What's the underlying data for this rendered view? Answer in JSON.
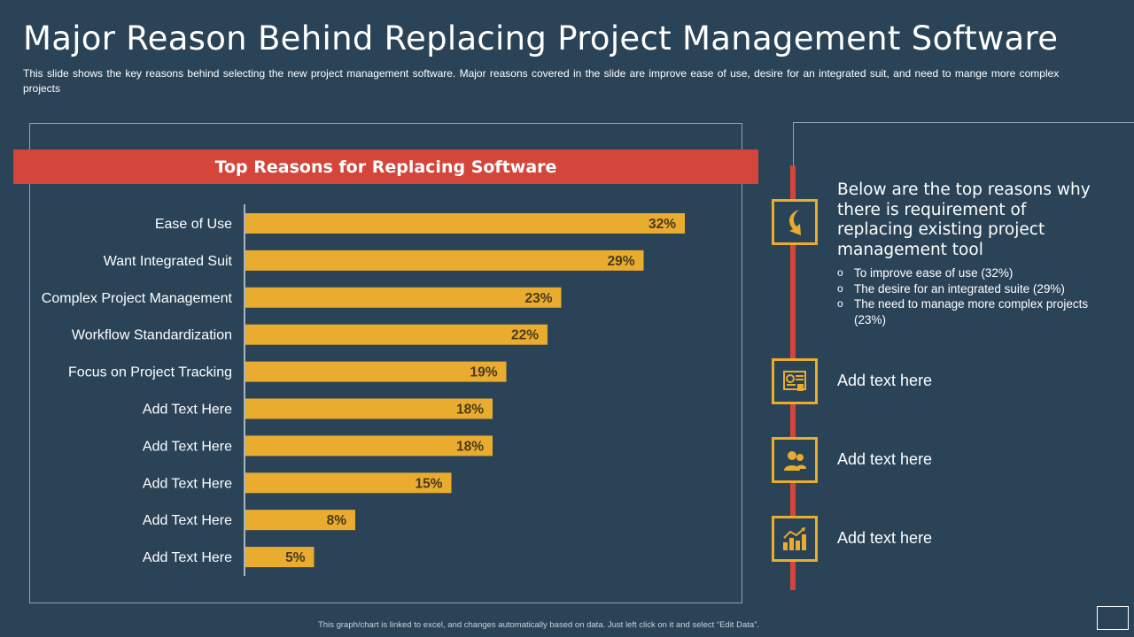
{
  "title": "Major Reason Behind Replacing Project Management Software",
  "subtitle": "This slide shows the key reasons behind selecting the new project management software. Major reasons covered in the slide are improve ease of use, desire for an integrated suit, and need to mange more complex projects",
  "chart_data": {
    "type": "bar",
    "orientation": "horizontal",
    "title": "Top Reasons for Replacing Software",
    "categories": [
      "Ease of Use",
      "Want Integrated Suit",
      "Complex Project Management",
      "Workflow Standardization",
      "Focus on Project Tracking",
      "Add Text Here",
      "Add Text Here",
      "Add Text Here",
      "Add Text Here",
      "Add Text Here"
    ],
    "values": [
      32,
      29,
      23,
      22,
      19,
      18,
      18,
      15,
      8,
      5
    ],
    "value_labels": [
      "32%",
      "29%",
      "23%",
      "22%",
      "19%",
      "18%",
      "18%",
      "15%",
      "8%",
      "5%"
    ],
    "unit": "%",
    "xlabel": "",
    "ylabel": "",
    "xlim": [
      0,
      32
    ],
    "grid": false,
    "legend": "none",
    "bar_color": "#e9ac2e",
    "label_color": "#4a3a1a"
  },
  "side": {
    "intro": "Below are the top reasons why there is requirement of replacing existing project management tool",
    "bullet_char": "o",
    "bullets": [
      "To improve ease of use (32%)",
      "The desire for an integrated suite (29%)",
      "The need to manage more complex projects (23%)"
    ],
    "items": [
      {
        "icon": "curved-arrow-icon"
      },
      {
        "icon": "report-document-icon",
        "text": "Add text here"
      },
      {
        "icon": "team-people-icon",
        "text": "Add text here"
      },
      {
        "icon": "growth-chart-icon",
        "text": "Add text here"
      }
    ]
  },
  "colors": {
    "background": "#2a4357",
    "accent_red": "#d4453b",
    "accent_gold": "#e9ac2e"
  },
  "footer_note": "This graph/chart is linked to excel, and changes automatically based on data. Just left click on it and select “Edit Data”."
}
